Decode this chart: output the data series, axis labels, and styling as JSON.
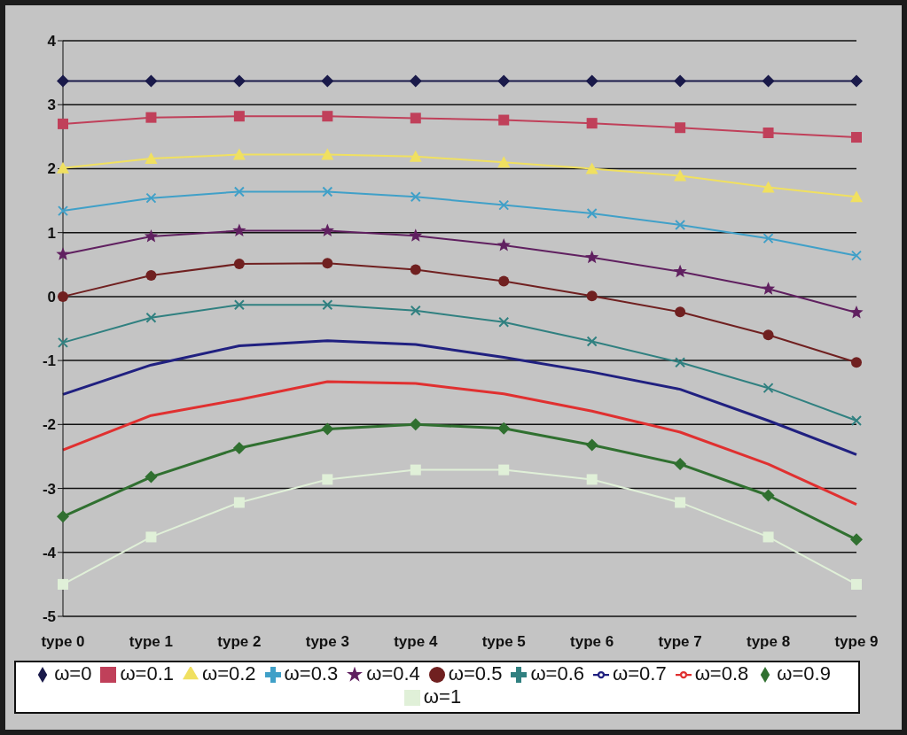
{
  "chart_data": {
    "type": "line",
    "categories": [
      "type 0",
      "type 1",
      "type 2",
      "type 3",
      "type 4",
      "type 5",
      "type 6",
      "type 7",
      "type 8",
      "type 9"
    ],
    "ylim": [
      -5,
      4
    ],
    "yticks": [
      -5,
      -4,
      -3,
      -2,
      -1,
      0,
      1,
      2,
      3,
      4
    ],
    "grid": "y",
    "legend": "bottom",
    "series": [
      {
        "name": "ω=0",
        "color": "#1a1a4a",
        "marker": "diamond",
        "values": [
          3.37,
          3.37,
          3.37,
          3.37,
          3.37,
          3.37,
          3.37,
          3.37,
          3.37,
          3.37
        ]
      },
      {
        "name": "ω=0.1",
        "color": "#c0405a",
        "marker": "square",
        "values": [
          2.7,
          2.8,
          2.82,
          2.82,
          2.79,
          2.76,
          2.71,
          2.64,
          2.56,
          2.49
        ]
      },
      {
        "name": "ω=0.2",
        "color": "#f0e060",
        "marker": "triangle",
        "values": [
          2.01,
          2.16,
          2.22,
          2.22,
          2.19,
          2.1,
          2.0,
          1.89,
          1.71,
          1.56
        ]
      },
      {
        "name": "ω=0.3",
        "color": "#40a0c8",
        "marker": "cross",
        "values": [
          1.34,
          1.54,
          1.64,
          1.64,
          1.56,
          1.43,
          1.3,
          1.12,
          0.91,
          0.64
        ]
      },
      {
        "name": "ω=0.4",
        "color": "#602060",
        "marker": "star",
        "values": [
          0.66,
          0.94,
          1.03,
          1.03,
          0.95,
          0.8,
          0.61,
          0.39,
          0.12,
          -0.25
        ]
      },
      {
        "name": "ω=0.5",
        "color": "#702020",
        "marker": "circle",
        "values": [
          0,
          0.33,
          0.51,
          0.52,
          0.42,
          0.24,
          0.01,
          -0.24,
          -0.6,
          -1.03
        ]
      },
      {
        "name": "ω=0.6",
        "color": "#308080",
        "marker": "cross",
        "values": [
          -0.72,
          -0.33,
          -0.13,
          -0.13,
          -0.22,
          -0.4,
          -0.7,
          -1.03,
          -1.43,
          -1.94
        ]
      },
      {
        "name": "ω=0.7",
        "color": "#202080",
        "marker": "none",
        "values": [
          -1.53,
          -1.07,
          -0.77,
          -0.69,
          -0.75,
          -0.95,
          -1.18,
          -1.45,
          -1.94,
          -2.47
        ]
      },
      {
        "name": "ω=0.8",
        "color": "#e03030",
        "marker": "none",
        "values": [
          -2.4,
          -1.86,
          -1.61,
          -1.33,
          -1.36,
          -1.52,
          -1.79,
          -2.12,
          -2.62,
          -3.25
        ]
      },
      {
        "name": "ω=0.9",
        "color": "#307030",
        "marker": "diamond",
        "values": [
          -3.44,
          -2.82,
          -2.37,
          -2.07,
          -2.0,
          -2.06,
          -2.32,
          -2.62,
          -3.11,
          -3.8
        ]
      },
      {
        "name": "ω=1",
        "color": "#e0f0d8",
        "marker": "square",
        "values": [
          -4.5,
          -3.76,
          -3.22,
          -2.86,
          -2.71,
          -2.71,
          -2.86,
          -3.22,
          -3.76,
          -4.5
        ]
      }
    ]
  }
}
